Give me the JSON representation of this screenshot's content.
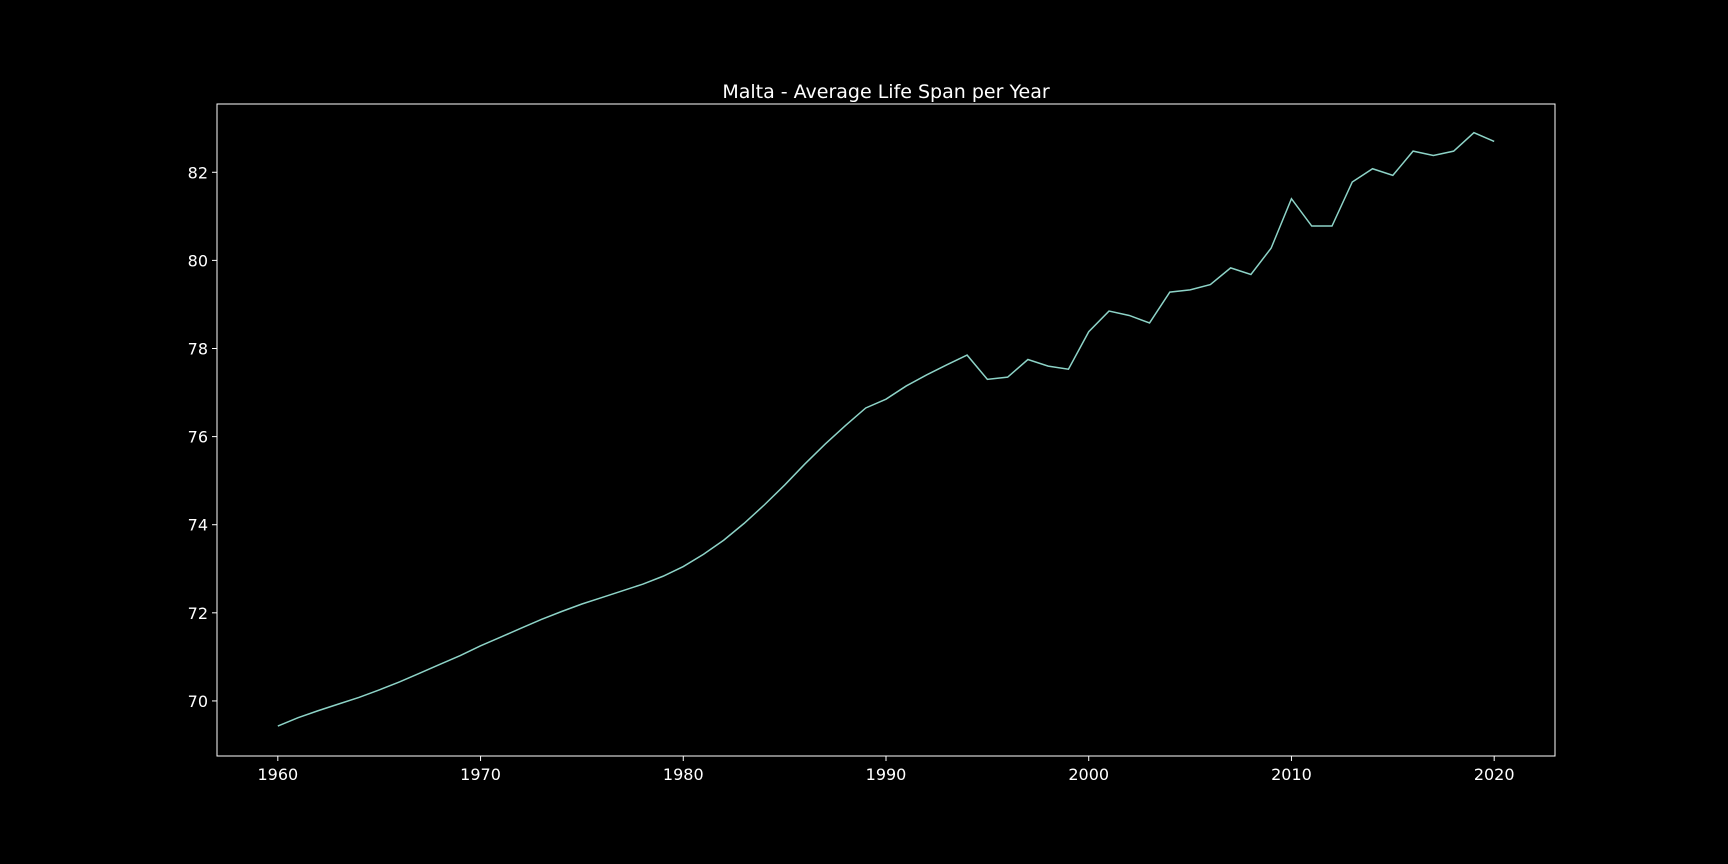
{
  "chart_data": {
    "type": "line",
    "title": "Malta - Average Life Span per Year",
    "x": [
      1960,
      1961,
      1962,
      1963,
      1964,
      1965,
      1966,
      1967,
      1968,
      1969,
      1970,
      1971,
      1972,
      1973,
      1974,
      1975,
      1976,
      1977,
      1978,
      1979,
      1980,
      1981,
      1982,
      1983,
      1984,
      1985,
      1986,
      1987,
      1988,
      1989,
      1990,
      1991,
      1992,
      1993,
      1994,
      1995,
      1996,
      1997,
      1998,
      1999,
      2000,
      2001,
      2002,
      2003,
      2004,
      2005,
      2006,
      2007,
      2008,
      2009,
      2010,
      2011,
      2012,
      2013,
      2014,
      2015,
      2016,
      2017,
      2018,
      2019,
      2020
    ],
    "values": [
      69.43,
      69.62,
      69.78,
      69.93,
      70.08,
      70.25,
      70.43,
      70.63,
      70.83,
      71.03,
      71.25,
      71.45,
      71.65,
      71.85,
      72.03,
      72.2,
      72.35,
      72.5,
      72.65,
      72.83,
      73.05,
      73.33,
      73.65,
      74.03,
      74.45,
      74.9,
      75.38,
      75.83,
      76.25,
      76.65,
      76.85,
      77.15,
      77.4,
      77.63,
      77.85,
      77.3,
      77.35,
      77.75,
      77.6,
      77.53,
      78.38,
      78.85,
      78.75,
      78.58,
      79.28,
      79.33,
      79.45,
      79.83,
      79.68,
      80.28,
      81.4,
      80.78,
      80.78,
      81.78,
      82.08,
      81.93,
      82.48,
      82.38,
      82.48,
      82.9,
      82.7
    ],
    "color": "#8dd3c7",
    "xlim": [
      1957,
      2023
    ],
    "ylim": [
      68.75,
      83.55
    ],
    "xticks": [
      1960,
      1970,
      1980,
      1990,
      2000,
      2010,
      2020
    ],
    "yticks": [
      70,
      72,
      74,
      76,
      78,
      80,
      82
    ],
    "grid": false
  }
}
